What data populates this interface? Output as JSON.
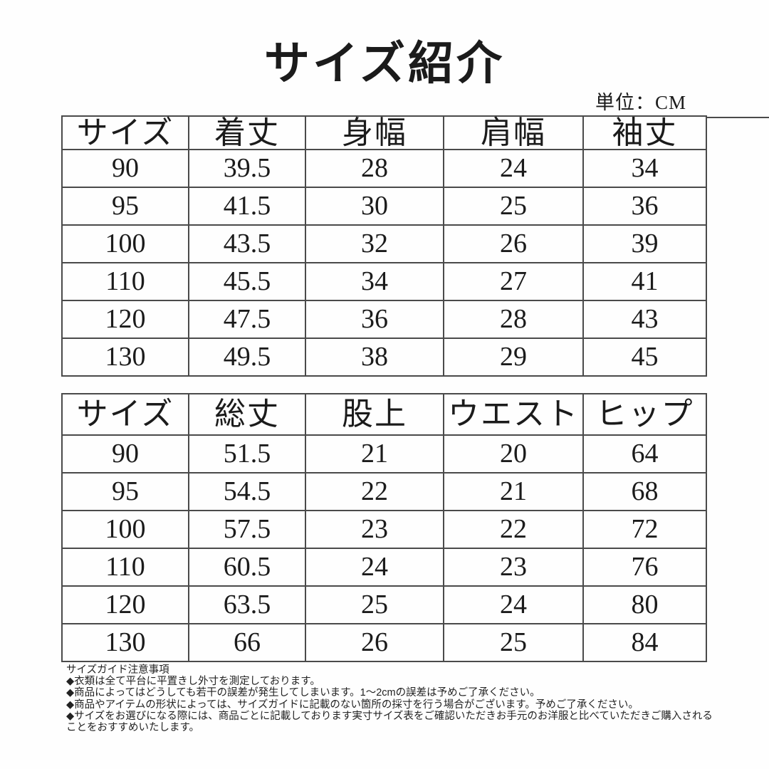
{
  "page": {
    "title": "サイズ紹介",
    "unit_label": "単位：CM"
  },
  "tables": [
    {
      "name": "tops-size-table",
      "headers": [
        "サイズ",
        "着丈",
        "身幅",
        "肩幅",
        "袖丈"
      ],
      "rows": [
        [
          "90",
          "39.5",
          "28",
          "24",
          "34"
        ],
        [
          "95",
          "41.5",
          "30",
          "25",
          "36"
        ],
        [
          "100",
          "43.5",
          "32",
          "26",
          "39"
        ],
        [
          "110",
          "45.5",
          "34",
          "27",
          "41"
        ],
        [
          "120",
          "47.5",
          "36",
          "28",
          "43"
        ],
        [
          "130",
          "49.5",
          "38",
          "29",
          "45"
        ]
      ]
    },
    {
      "name": "bottoms-size-table",
      "headers": [
        "サイズ",
        "総丈",
        "股上",
        "ウエスト",
        "ヒップ"
      ],
      "rows": [
        [
          "90",
          "51.5",
          "21",
          "20",
          "64"
        ],
        [
          "95",
          "54.5",
          "22",
          "21",
          "68"
        ],
        [
          "100",
          "57.5",
          "23",
          "22",
          "72"
        ],
        [
          "110",
          "60.5",
          "24",
          "23",
          "76"
        ],
        [
          "120",
          "63.5",
          "25",
          "24",
          "80"
        ],
        [
          "130",
          "66",
          "26",
          "25",
          "84"
        ]
      ]
    }
  ],
  "notes": {
    "title": "サイズガイド注意事項",
    "items": [
      "◆衣類は全て平台に平置きし外寸を測定しております。",
      "◆商品によってはどうしても若干の誤差が発生してしまいます。1～2cmの誤差は予めご了承ください。",
      "◆商品やアイテムの形状によっては、サイズガイドに記載のない箇所の採寸を行う場合がございます。予めご了承ください。",
      "◆サイズをお選びになる際には、商品ごとに記載しております実寸サイズ表をご確認いただきお手元のお洋服と比べていただきご購入されることをおすすめいたします。"
    ]
  },
  "colors": {
    "text": "#1b1b1b",
    "border": "#4a4a4a",
    "background": "#fefefe"
  }
}
